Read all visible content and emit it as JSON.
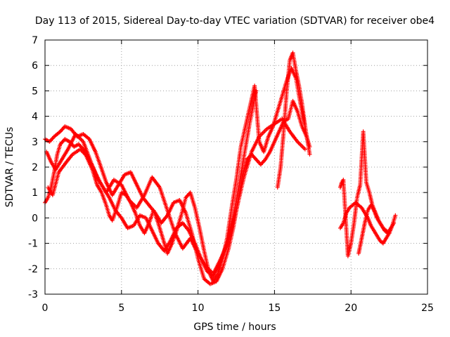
{
  "chart_data": {
    "type": "scatter",
    "title": "Day 113 of 2015, Sidereal Day-to-day VTEC variation (SDTVAR) for receiver obe4",
    "xlabel": "GPS time / hours",
    "ylabel": "SDTVAR / TECUs",
    "xlim": [
      0,
      25
    ],
    "ylim": [
      -3,
      7
    ],
    "xticks": [
      "0",
      "5",
      "10",
      "15",
      "20",
      "25"
    ],
    "yticks": [
      "-3",
      "-2",
      "-1",
      "0",
      "1",
      "2",
      "3",
      "4",
      "5",
      "6",
      "7"
    ],
    "grid": true,
    "marker": "+",
    "series": [
      {
        "name": "trace-a",
        "color": "#ff0000",
        "x": [
          0.0,
          0.3,
          0.6,
          1.0,
          1.3,
          1.7,
          2.1,
          2.5,
          2.9,
          3.3,
          3.6,
          4.0,
          4.4,
          4.8,
          5.2,
          5.6,
          6.0,
          6.4,
          6.8,
          7.2,
          7.6,
          8.0,
          8.4,
          8.8,
          9.2,
          9.6,
          10.0,
          10.4,
          10.8,
          11.2,
          11.6,
          12.0,
          12.3,
          12.6,
          12.9,
          13.2,
          13.5,
          13.8,
          14.1,
          14.4,
          14.7,
          15.0,
          15.3,
          15.6,
          15.9,
          16.2,
          16.5,
          16.8,
          17.1,
          17.3
        ],
        "y": [
          3.1,
          3.0,
          3.2,
          3.4,
          3.6,
          3.5,
          3.2,
          3.3,
          3.1,
          2.6,
          2.1,
          1.4,
          0.9,
          1.3,
          1.7,
          1.8,
          1.3,
          0.8,
          0.5,
          0.2,
          -0.2,
          0.1,
          0.6,
          0.7,
          0.2,
          -0.6,
          -1.6,
          -2.4,
          -2.6,
          -2.5,
          -2.0,
          -1.2,
          -0.4,
          0.6,
          1.6,
          2.3,
          2.5,
          2.3,
          2.1,
          2.3,
          2.6,
          3.0,
          3.4,
          3.8,
          3.9,
          4.6,
          4.2,
          3.6,
          3.2,
          2.8
        ]
      },
      {
        "name": "trace-b",
        "color": "#ff0000",
        "x": [
          0.0,
          0.2,
          0.4,
          0.6,
          0.8,
          1.0,
          1.3,
          1.6,
          1.9,
          2.2,
          2.5,
          2.8,
          3.1,
          3.4,
          3.7,
          4.0,
          4.2,
          4.4,
          4.7,
          5.0,
          5.3,
          5.6,
          5.9,
          6.2,
          6.5,
          6.8,
          7.1,
          7.4,
          7.7,
          8.0,
          8.3,
          8.6,
          8.9,
          9.2,
          9.5,
          9.8,
          10.1,
          10.4,
          10.7,
          11.0,
          11.3,
          11.6,
          11.9,
          12.2,
          12.5,
          12.8,
          13.1,
          13.4,
          13.7,
          14.0,
          14.3,
          14.6,
          14.9,
          15.2,
          15.5,
          15.8,
          16.1,
          16.4,
          16.7,
          17.0,
          17.3
        ],
        "y": [
          0.6,
          0.8,
          1.2,
          1.8,
          2.5,
          2.9,
          3.1,
          3.0,
          2.8,
          2.9,
          2.7,
          2.3,
          1.9,
          1.3,
          1.0,
          0.5,
          0.1,
          -0.1,
          0.4,
          1.0,
          0.9,
          0.6,
          0.2,
          -0.3,
          -0.6,
          -0.2,
          0.3,
          -0.2,
          -0.8,
          -1.4,
          -1.0,
          -0.5,
          0.1,
          0.8,
          1.0,
          0.4,
          -0.4,
          -1.3,
          -2.1,
          -2.5,
          -2.2,
          -1.6,
          -0.8,
          0.4,
          1.5,
          2.8,
          3.6,
          4.4,
          5.2,
          3.0,
          2.6,
          3.2,
          3.6,
          4.2,
          4.8,
          5.4,
          5.9,
          5.5,
          4.5,
          3.6,
          2.5
        ]
      },
      {
        "name": "trace-c",
        "color": "#ff0000",
        "x": [
          0.1,
          0.4,
          0.7,
          1.1,
          1.5,
          2.0,
          2.5,
          3.0,
          3.4,
          3.8,
          4.2,
          4.6,
          5.0,
          5.4,
          5.8,
          6.2,
          6.6,
          7.0,
          7.4,
          7.8,
          8.2,
          8.6,
          9.0,
          9.4,
          9.8,
          10.2,
          10.6,
          11.0,
          11.4,
          11.8,
          12.2,
          12.6,
          13.0,
          13.4,
          13.8
        ],
        "y": [
          2.6,
          2.2,
          1.9,
          2.3,
          2.7,
          3.3,
          3.0,
          2.2,
          1.6,
          1.2,
          0.8,
          0.3,
          0.0,
          -0.4,
          -0.3,
          0.1,
          0.0,
          -0.5,
          -1.0,
          -1.3,
          -0.9,
          -0.4,
          -0.2,
          -0.5,
          -1.0,
          -1.6,
          -2.1,
          -2.3,
          -1.8,
          -1.2,
          -0.3,
          1.0,
          2.4,
          3.8,
          5.0
        ]
      },
      {
        "name": "trace-d",
        "color": "#ff0000",
        "x": [
          0.2,
          0.5,
          0.9,
          1.4,
          1.8,
          2.3,
          2.8,
          3.2,
          3.6,
          4.0,
          4.5,
          5.0,
          5.5,
          6.0,
          6.5,
          7.0,
          7.5,
          8.0,
          8.5,
          9.0,
          9.5,
          10.0,
          10.5,
          11.0,
          11.5,
          12.0,
          12.5,
          13.0,
          13.5,
          14.0,
          14.5,
          15.0,
          15.5,
          16.0,
          16.5,
          17.0
        ],
        "y": [
          1.2,
          0.9,
          1.8,
          2.2,
          2.5,
          2.7,
          2.4,
          1.9,
          1.4,
          1.0,
          1.5,
          1.3,
          0.7,
          0.4,
          0.9,
          1.6,
          1.2,
          0.3,
          -0.6,
          -1.2,
          -0.8,
          -1.4,
          -1.9,
          -2.2,
          -1.6,
          -0.9,
          0.3,
          1.6,
          2.6,
          3.2,
          3.5,
          3.7,
          3.9,
          3.4,
          3.0,
          2.7
        ]
      },
      {
        "name": "trace-e",
        "color": "#ff0000",
        "x": [
          15.2,
          15.4,
          15.6,
          15.8,
          16.0,
          16.2,
          16.4,
          16.6,
          16.8,
          17.0
        ],
        "y": [
          1.2,
          2.0,
          3.4,
          5.0,
          6.2,
          6.5,
          5.8,
          5.2,
          4.5,
          3.6
        ]
      },
      {
        "name": "trace-f",
        "color": "#ff0000",
        "x": [
          19.3,
          19.5,
          19.7,
          19.9,
          20.1,
          20.3,
          20.5,
          20.7,
          20.9,
          21.1,
          21.3,
          21.5,
          21.7,
          21.9,
          22.1,
          22.3,
          22.5,
          22.7,
          22.9
        ],
        "y": [
          -0.4,
          -0.2,
          0.2,
          0.4,
          0.5,
          0.6,
          0.5,
          0.4,
          0.2,
          0.0,
          -0.3,
          -0.5,
          -0.7,
          -0.9,
          -1.0,
          -0.8,
          -0.6,
          -0.3,
          0.1
        ]
      },
      {
        "name": "trace-g",
        "color": "#ff0000",
        "x": [
          19.3,
          19.4,
          19.5,
          19.8,
          20.0,
          20.2,
          20.4,
          20.6,
          20.8,
          21.0,
          21.2,
          21.4,
          21.6,
          21.8,
          22.0,
          22.2,
          22.4,
          22.6,
          22.8
        ],
        "y": [
          1.2,
          1.4,
          1.5,
          -1.5,
          -1.0,
          -0.2,
          0.8,
          1.3,
          3.4,
          1.4,
          1.0,
          0.5,
          0.2,
          -0.1,
          -0.3,
          -0.5,
          -0.6,
          -0.4,
          -0.2
        ]
      },
      {
        "name": "trace-h",
        "color": "#ff0000",
        "x": [
          20.5,
          20.7,
          20.9,
          21.1,
          21.3,
          21.5,
          21.7,
          21.9,
          22.1,
          22.3,
          22.5
        ],
        "y": [
          -1.4,
          -0.8,
          -0.2,
          0.3,
          0.5,
          0.3,
          0.0,
          -0.2,
          -0.4,
          -0.5,
          -0.6
        ]
      }
    ]
  }
}
